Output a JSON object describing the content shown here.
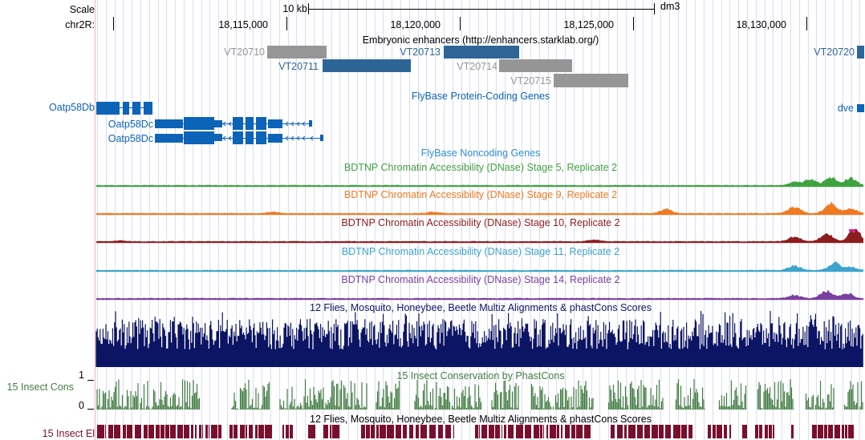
{
  "header": {
    "scale_label": "Scale",
    "chrom_label": "chr2R:",
    "scale_bar_text": "10 kb",
    "assembly": "dm3",
    "positions": [
      "18,115,000",
      "18,120,000",
      "18,125,000",
      "18,130,000"
    ]
  },
  "tracks": {
    "enhancers": {
      "title": "Embryonic enhancers (http://enhancers.starklab.org/)",
      "items": [
        {
          "name": "VT20710",
          "color": "#969696"
        },
        {
          "name": "VT20711",
          "color": "#2d6696"
        },
        {
          "name": "VT20713",
          "color": "#2d6696"
        },
        {
          "name": "VT20714",
          "color": "#969696"
        },
        {
          "name": "VT20715",
          "color": "#969696"
        },
        {
          "name": "VT20720",
          "color": "#2d6696"
        }
      ]
    },
    "protein_coding": {
      "title": "FlyBase Protein-Coding Genes",
      "genes": [
        "Oatp58Db",
        "Oatp58Dc",
        "Oatp58Dc",
        "dve"
      ],
      "color": "#0c63b8"
    },
    "noncoding": {
      "title": "FlyBase Noncoding Genes",
      "color": "#2f8fd6"
    },
    "dnase": [
      {
        "title": "BDTNP Chromatin Accessibility (DNase) Stage 5, Replicate 2",
        "color": "#3fa33f"
      },
      {
        "title": "BDTNP Chromatin Accessibility (DNase) Stage 9, Replicate 2",
        "color": "#ef7a22"
      },
      {
        "title": "BDTNP Chromatin Accessibility (DNase) Stage 10, Replicate 2",
        "color": "#8e1d1d"
      },
      {
        "title": "BDTNP Chromatin Accessibility (DNase) Stage 11, Replicate 2",
        "color": "#3ca4cd"
      },
      {
        "title": "BDTNP Chromatin Accessibility (DNase) Stage 14, Replicate 2",
        "color": "#7b3fa0"
      }
    ],
    "multiz": {
      "title": "12 Flies, Mosquito, Honeybee, Beetle Multiz Alignments & phastCons Scores",
      "color": "#0c1464"
    },
    "phastcons": {
      "title": "15 Insect Conservation by PhastCons",
      "side_label": "15 Insect Cons",
      "scale_max": "1",
      "scale_min": "0",
      "color": "#437d43"
    },
    "elements": {
      "title": "12 Flies, Mosquito, Honeybee, Beetle Multiz Alignments & phastCons Scores",
      "side_label": "15 Insect El",
      "color": "#7a0e2d"
    }
  }
}
